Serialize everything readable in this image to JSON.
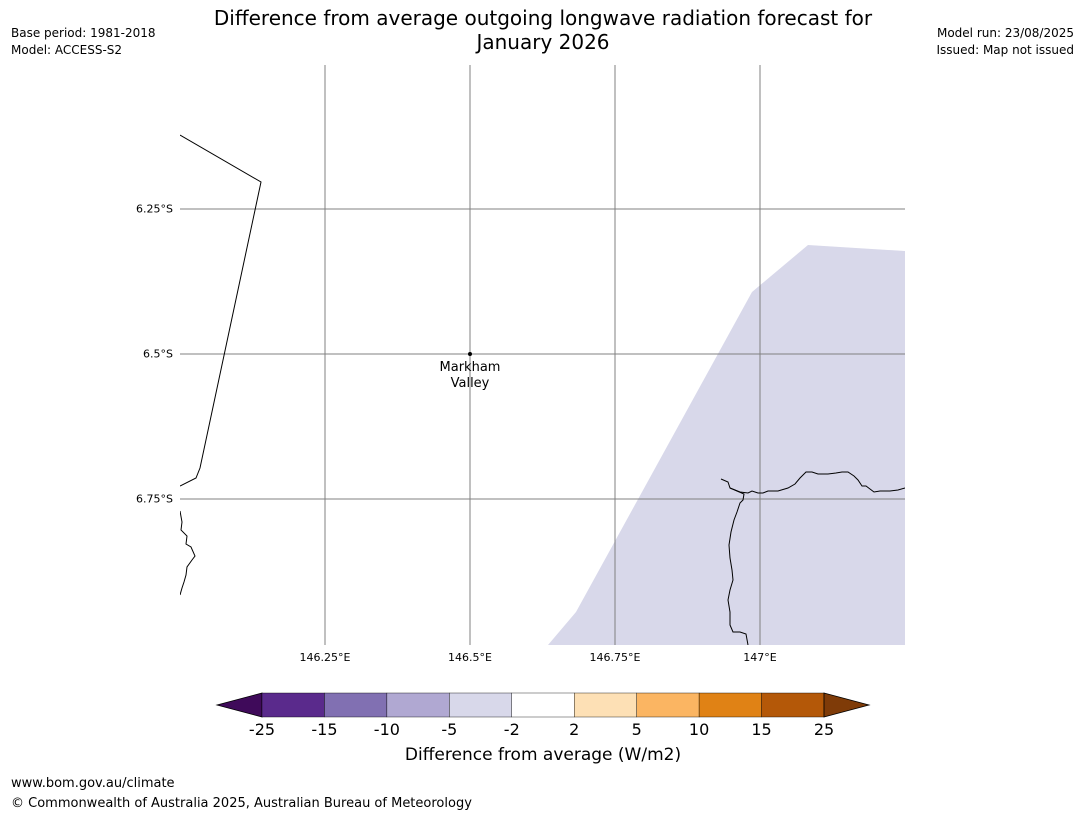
{
  "title_line1": "Difference from average outgoing longwave radiation forecast for",
  "title_line2": "January 2026",
  "meta_left": {
    "base_period": "Base period: 1981-2018",
    "model": "Model: ACCESS-S2"
  },
  "meta_right": {
    "model_run": "Model run: 23/08/2025",
    "issued": "Issued: Map not issued"
  },
  "map": {
    "latitude_labels": [
      "6.25°S",
      "6.5°S",
      "6.75°S"
    ],
    "longitude_labels": [
      "146.25°E",
      "146.5°E",
      "146.75°E",
      "147°E"
    ],
    "place_line1": "Markham",
    "place_line2": "Valley",
    "shaded_category": "-5 to -2",
    "shaded_color": "#d8d8ea",
    "coastline_color": "#000000",
    "gridline_color": "#808080"
  },
  "legend": {
    "title": "Difference from average (W/m2)",
    "tick_labels": [
      "-25",
      "-15",
      "-10",
      "-5",
      "-2",
      "2",
      "5",
      "10",
      "15",
      "25"
    ],
    "colors": [
      "#3f0a5a",
      "#5a2a8c",
      "#8170b2",
      "#b0a8d2",
      "#d8d8ea",
      "#ffffff",
      "#fde0b5",
      "#fbb562",
      "#e08215",
      "#b45808",
      "#7f3b08"
    ],
    "extend": "both"
  },
  "footer": {
    "url": "www.bom.gov.au/climate",
    "copyright": "© Commonwealth of Australia 2025, Australian Bureau of Meteorology"
  }
}
